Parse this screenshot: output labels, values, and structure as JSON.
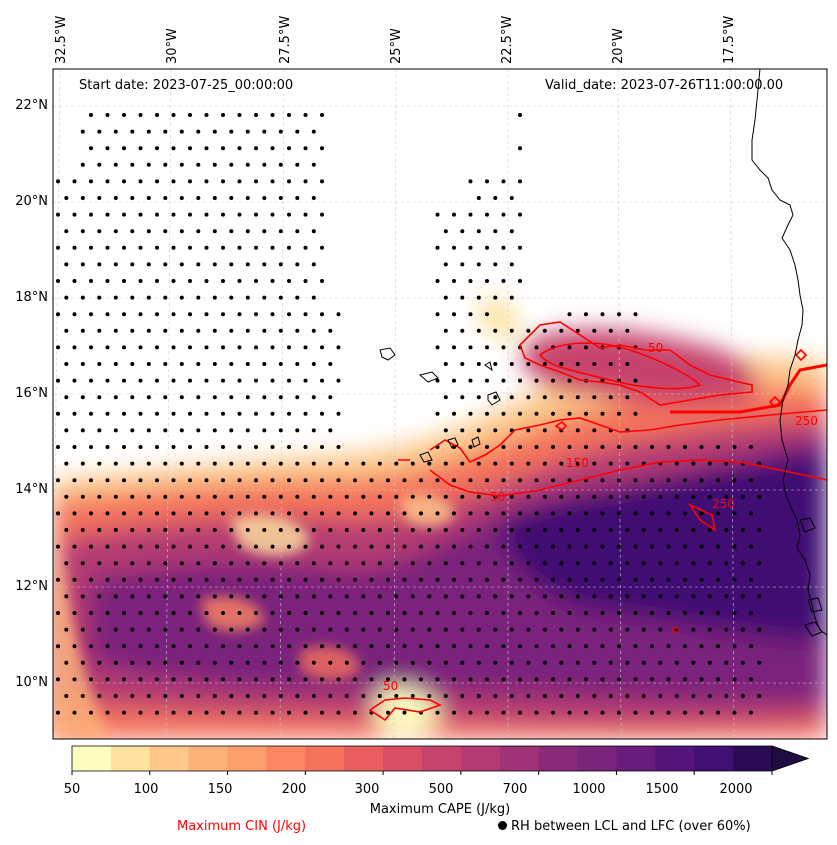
{
  "header": {
    "start_date": "Start date: 2023-07-25_00:00:00",
    "valid_date": "Valid_date: 2023-07-26T11:00:00.00"
  },
  "axes": {
    "lon_labels": [
      "32.5°W",
      "30°W",
      "27.5°W",
      "25°W",
      "22.5°W",
      "20°W",
      "17.5°W"
    ],
    "lat_labels": [
      "22°N",
      "20°N",
      "18°N",
      "16°N",
      "14°N",
      "12°N",
      "10°N"
    ]
  },
  "colorbar": {
    "title": "Maximum CAPE (J/kg)",
    "tick_labels": [
      "50",
      "100",
      "150",
      "200",
      "300",
      "500",
      "700",
      "1000",
      "1500",
      "2000"
    ],
    "colors": [
      "#fdfdc0",
      "#fde2a0",
      "#fdc889",
      "#fdb27a",
      "#fc9d6c",
      "#fb8661",
      "#f4725c",
      "#e85e60",
      "#d84e66",
      "#c6436c",
      "#b43a72",
      "#a03276",
      "#8b2a79",
      "#7a247b",
      "#681d7c",
      "#55147a",
      "#3f0f72",
      "#2a0c55",
      "#1e0c43"
    ]
  },
  "legend": {
    "cin_label": "Maximum CIN (J/kg)",
    "rh_label": "RH between LCL and LFC (over 60%)"
  },
  "contour_labels": [
    "50",
    "50",
    "250",
    "150",
    "250",
    "50"
  ],
  "colors": {
    "cin_contour": "#ff0000",
    "coastline": "#000000",
    "grid": "#cccccc"
  }
}
